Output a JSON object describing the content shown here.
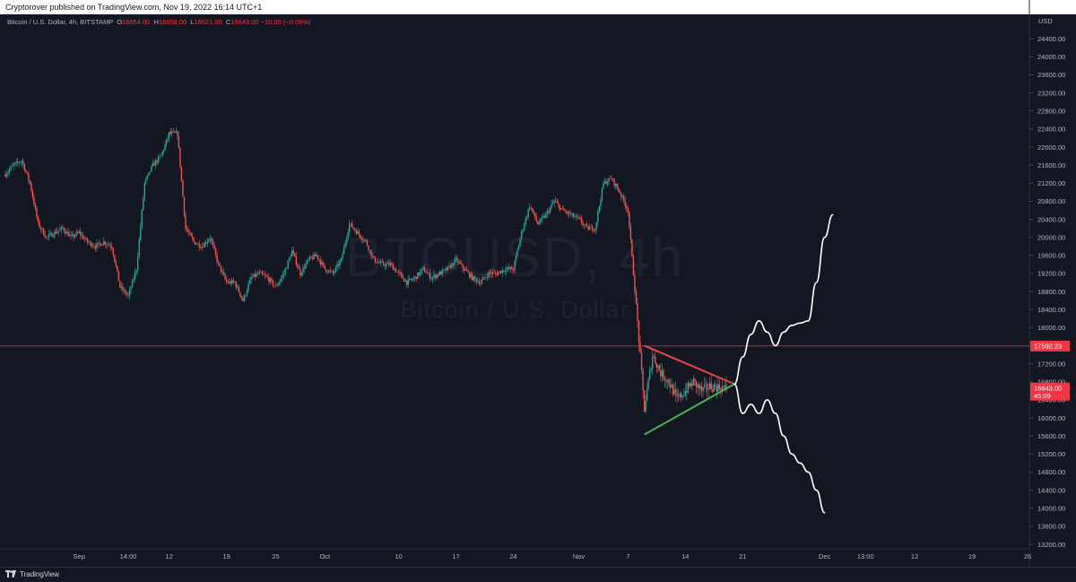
{
  "header": {
    "published_text": "Cryptorover published on TradingView.com, Nov 19, 2022 16:14 UTC+1"
  },
  "legend": {
    "symbol_text": "Bitcoin / U.S. Dollar, 4h, BITSTAMP",
    "o_key": "O",
    "o_val": "16654.00",
    "h_key": "H",
    "h_val": "16658.00",
    "l_key": "L",
    "l_val": "16621.00",
    "c_key": "C",
    "c_val": "16643.00",
    "change": "−10.00 (−0.06%)"
  },
  "watermark": {
    "ticker": "BTCUSD, 4h",
    "name": "Bitcoin / U.S. Dollar"
  },
  "footer": {
    "brand": "TradingView"
  },
  "colors": {
    "background": "#131722",
    "up": "#26a69a",
    "down": "#ef5350",
    "triangle_upper": "#ef4444",
    "triangle_lower": "#4caf50",
    "projection": "#ffffff",
    "horizontal_line": "#f23645",
    "price_tag": "#f23645"
  },
  "chart_data": {
    "type": "candlestick",
    "title": "Bitcoin / U.S. Dollar, 4h, BITSTAMP",
    "interval": "4h",
    "currency_label": "USD",
    "ylim": [
      13100,
      24900
    ],
    "xlim": [
      "2022-08-23",
      "2022-12-26"
    ],
    "y_ticks": [
      "24400.00",
      "24000.00",
      "23600.00",
      "23200.00",
      "22800.00",
      "22400.00",
      "22000.00",
      "21600.00",
      "21200.00",
      "20800.00",
      "20400.00",
      "20000.00",
      "19600.00",
      "19200.00",
      "18800.00",
      "18400.00",
      "18000.00",
      "17600.00",
      "17200.00",
      "16800.00",
      "16400.00",
      "16000.00",
      "15600.00",
      "15200.00",
      "14800.00",
      "14400.00",
      "14000.00",
      "13600.00",
      "13200.00"
    ],
    "x_ticks": [
      {
        "date": "2022-09-01",
        "label": "Sep"
      },
      {
        "date": "2022-09-07",
        "label": "14:00"
      },
      {
        "date": "2022-09-12",
        "label": "12"
      },
      {
        "date": "2022-09-19",
        "label": "19"
      },
      {
        "date": "2022-09-25",
        "label": "25"
      },
      {
        "date": "2022-10-01",
        "label": "Oct"
      },
      {
        "date": "2022-10-10",
        "label": "10"
      },
      {
        "date": "2022-10-17",
        "label": "17"
      },
      {
        "date": "2022-10-24",
        "label": "24"
      },
      {
        "date": "2022-11-01",
        "label": "Nov"
      },
      {
        "date": "2022-11-07",
        "label": "7"
      },
      {
        "date": "2022-11-14",
        "label": "14"
      },
      {
        "date": "2022-11-21",
        "label": "21"
      },
      {
        "date": "2022-12-01",
        "label": "Dec"
      },
      {
        "date": "2022-12-06",
        "label": "13:00"
      },
      {
        "date": "2022-12-12",
        "label": "12"
      },
      {
        "date": "2022-12-19",
        "label": "19"
      },
      {
        "date": "2022-12-26",
        "label": "26"
      }
    ],
    "price_path": [
      [
        "2022-08-23",
        21400
      ],
      [
        "2022-08-24",
        21600
      ],
      [
        "2022-08-25",
        21700
      ],
      [
        "2022-08-26",
        21200
      ],
      [
        "2022-08-27",
        20300
      ],
      [
        "2022-08-28",
        20000
      ],
      [
        "2022-08-29",
        20100
      ],
      [
        "2022-08-30",
        20200
      ],
      [
        "2022-08-31",
        20000
      ],
      [
        "2022-09-01",
        20100
      ],
      [
        "2022-09-02",
        19900
      ],
      [
        "2022-09-03",
        19800
      ],
      [
        "2022-09-04",
        19900
      ],
      [
        "2022-09-05",
        19800
      ],
      [
        "2022-09-06",
        18900
      ],
      [
        "2022-09-07",
        18700
      ],
      [
        "2022-09-08",
        19300
      ],
      [
        "2022-09-09",
        21200
      ],
      [
        "2022-09-10",
        21600
      ],
      [
        "2022-09-11",
        21800
      ],
      [
        "2022-09-12",
        22300
      ],
      [
        "2022-09-13",
        22300
      ],
      [
        "2022-09-14",
        20200
      ],
      [
        "2022-09-15",
        19900
      ],
      [
        "2022-09-16",
        19800
      ],
      [
        "2022-09-17",
        20000
      ],
      [
        "2022-09-18",
        19400
      ],
      [
        "2022-09-19",
        19000
      ],
      [
        "2022-09-20",
        19000
      ],
      [
        "2022-09-21",
        18600
      ],
      [
        "2022-09-22",
        19100
      ],
      [
        "2022-09-23",
        19200
      ],
      [
        "2022-09-24",
        19100
      ],
      [
        "2022-09-25",
        18900
      ],
      [
        "2022-09-26",
        19200
      ],
      [
        "2022-09-27",
        19700
      ],
      [
        "2022-09-28",
        19200
      ],
      [
        "2022-09-29",
        19500
      ],
      [
        "2022-09-30",
        19600
      ],
      [
        "2022-10-01",
        19300
      ],
      [
        "2022-10-02",
        19200
      ],
      [
        "2022-10-03",
        19500
      ],
      [
        "2022-10-04",
        20300
      ],
      [
        "2022-10-05",
        20100
      ],
      [
        "2022-10-06",
        19900
      ],
      [
        "2022-10-07",
        19500
      ],
      [
        "2022-10-08",
        19400
      ],
      [
        "2022-10-09",
        19400
      ],
      [
        "2022-10-10",
        19200
      ],
      [
        "2022-10-11",
        19000
      ],
      [
        "2022-10-12",
        19100
      ],
      [
        "2022-10-13",
        19300
      ],
      [
        "2022-10-14",
        19100
      ],
      [
        "2022-10-15",
        19200
      ],
      [
        "2022-10-16",
        19300
      ],
      [
        "2022-10-17",
        19500
      ],
      [
        "2022-10-18",
        19300
      ],
      [
        "2022-10-19",
        19100
      ],
      [
        "2022-10-20",
        19000
      ],
      [
        "2022-10-21",
        19200
      ],
      [
        "2022-10-22",
        19200
      ],
      [
        "2022-10-23",
        19300
      ],
      [
        "2022-10-24",
        19300
      ],
      [
        "2022-10-25",
        20100
      ],
      [
        "2022-10-26",
        20700
      ],
      [
        "2022-10-27",
        20300
      ],
      [
        "2022-10-28",
        20500
      ],
      [
        "2022-10-29",
        20800
      ],
      [
        "2022-10-30",
        20600
      ],
      [
        "2022-10-31",
        20500
      ],
      [
        "2022-11-01",
        20400
      ],
      [
        "2022-11-02",
        20200
      ],
      [
        "2022-11-03",
        20200
      ],
      [
        "2022-11-04",
        21200
      ],
      [
        "2022-11-05",
        21300
      ],
      [
        "2022-11-06",
        21000
      ],
      [
        "2022-11-07",
        20600
      ],
      [
        "2022-11-08",
        18500
      ],
      [
        "2022-11-09",
        16200
      ],
      [
        "2022-11-10",
        17400
      ],
      [
        "2022-11-11",
        17000
      ],
      [
        "2022-11-12",
        16800
      ],
      [
        "2022-11-13",
        16400
      ],
      [
        "2022-11-14",
        16600
      ],
      [
        "2022-11-15",
        16800
      ],
      [
        "2022-11-16",
        16600
      ],
      [
        "2022-11-17",
        16700
      ],
      [
        "2022-11-18",
        16680
      ],
      [
        "2022-11-19",
        16643
      ]
    ],
    "horizontal_line": {
      "price": 17592.23,
      "label": "17592.23"
    },
    "last_price": {
      "price": 16643.0,
      "label": "16643.00",
      "countdown": "45:09"
    },
    "triangle": {
      "upper": [
        [
          "2022-11-09",
          17600
        ],
        [
          "2022-11-20",
          16750
        ]
      ],
      "lower": [
        [
          "2022-11-09",
          15630
        ],
        [
          "2022-11-20",
          16750
        ]
      ]
    },
    "projection_up": [
      [
        "2022-11-20",
        16750
      ],
      [
        "2022-11-21",
        17350
      ],
      [
        "2022-11-22",
        17850
      ],
      [
        "2022-11-23",
        18150
      ],
      [
        "2022-11-24",
        17900
      ],
      [
        "2022-11-25",
        17600
      ],
      [
        "2022-11-26",
        17900
      ],
      [
        "2022-11-27",
        18050
      ],
      [
        "2022-11-28",
        18100
      ],
      [
        "2022-11-29",
        18150
      ],
      [
        "2022-11-30",
        19000
      ],
      [
        "2022-12-01",
        20000
      ],
      [
        "2022-12-02",
        20500
      ]
    ],
    "projection_down": [
      [
        "2022-11-20",
        16750
      ],
      [
        "2022-11-21",
        16100
      ],
      [
        "2022-11-22",
        16300
      ],
      [
        "2022-11-23",
        16100
      ],
      [
        "2022-11-24",
        16400
      ],
      [
        "2022-11-25",
        16100
      ],
      [
        "2022-11-26",
        15600
      ],
      [
        "2022-11-27",
        15200
      ],
      [
        "2022-11-28",
        15000
      ],
      [
        "2022-11-29",
        14800
      ],
      [
        "2022-11-30",
        14400
      ],
      [
        "2022-12-01",
        13900
      ]
    ]
  }
}
